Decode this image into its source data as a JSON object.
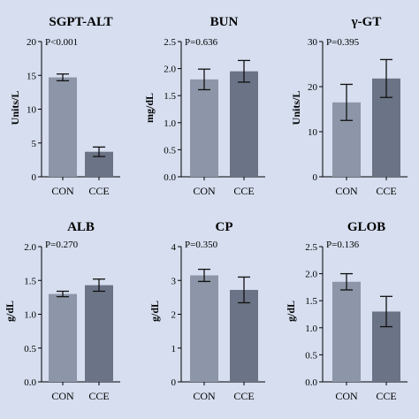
{
  "colors": {
    "background": "#d6deef",
    "con": "#8c96a8",
    "cce": "#6b7386",
    "axis": "#000000"
  },
  "chart_data": [
    {
      "type": "bar",
      "title": "SGPT-ALT",
      "ylabel": "Units/L",
      "annotation": "P<0.001",
      "categories": [
        "CON",
        "CCE"
      ],
      "values": [
        14.7,
        3.7
      ],
      "errors": [
        0.5,
        0.7
      ],
      "ylim": [
        0,
        20
      ],
      "yticks": [
        "0",
        "5",
        "10",
        "15",
        "20"
      ]
    },
    {
      "type": "bar",
      "title": "BUN",
      "ylabel": "mg/dL",
      "annotation": "P=0.636",
      "categories": [
        "CON",
        "CCE"
      ],
      "values": [
        1.8,
        1.95
      ],
      "errors": [
        0.19,
        0.2
      ],
      "ylim": [
        0,
        2.5
      ],
      "yticks": [
        "0.0",
        "0.5",
        "1.0",
        "1.5",
        "2.0",
        "2.5"
      ]
    },
    {
      "type": "bar",
      "title": "γ-GT",
      "ylabel": "Units/L",
      "annotation": "P=0.395",
      "categories": [
        "CON",
        "CCE"
      ],
      "values": [
        16.5,
        21.8
      ],
      "errors": [
        4.0,
        4.2
      ],
      "ylim": [
        0,
        30
      ],
      "yticks": [
        "0",
        "10",
        "20",
        "30"
      ]
    },
    {
      "type": "bar",
      "title": "ALB",
      "ylabel": "g/dL",
      "annotation": "P=0.270",
      "categories": [
        "CON",
        "CCE"
      ],
      "values": [
        1.3,
        1.43
      ],
      "errors": [
        0.04,
        0.09
      ],
      "ylim": [
        0,
        2.0
      ],
      "yticks": [
        "0.0",
        "0.5",
        "1.0",
        "1.5",
        "2.0"
      ]
    },
    {
      "type": "bar",
      "title": "CP",
      "ylabel": "g/dL",
      "annotation": "P=0.350",
      "categories": [
        "CON",
        "CCE"
      ],
      "values": [
        3.15,
        2.72
      ],
      "errors": [
        0.18,
        0.38
      ],
      "ylim": [
        0,
        4
      ],
      "yticks": [
        "0",
        "1",
        "2",
        "3",
        "4"
      ]
    },
    {
      "type": "bar",
      "title": "GLOB",
      "ylabel": "g/dL",
      "annotation": "P=0.136",
      "categories": [
        "CON",
        "CCE"
      ],
      "values": [
        1.85,
        1.3
      ],
      "errors": [
        0.15,
        0.28
      ],
      "ylim": [
        0,
        2.5
      ],
      "yticks": [
        "0.0",
        "0.5",
        "1.0",
        "1.5",
        "2.0",
        "2.5"
      ]
    }
  ]
}
